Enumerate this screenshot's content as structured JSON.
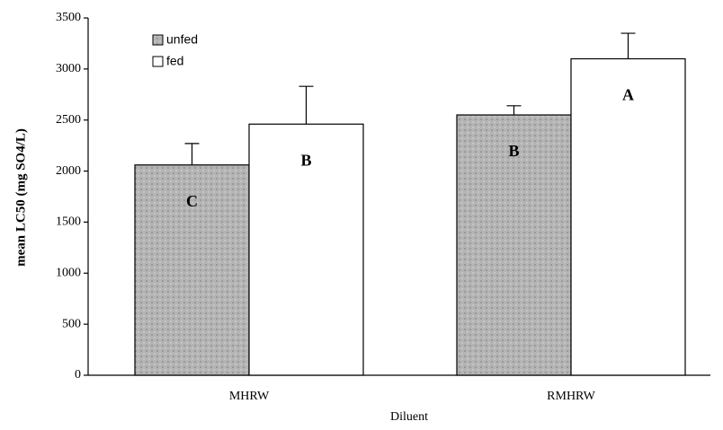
{
  "chart_data": {
    "type": "bar",
    "xlabel": "Diluent",
    "ylabel": "mean LC50 (mg SO4/L)",
    "categories": [
      "MHRW",
      "RMHRW"
    ],
    "series": [
      {
        "name": "unfed",
        "color": "#b4b4b4",
        "values": [
          2060,
          2550
        ],
        "errors": [
          210,
          90
        ],
        "annotations": [
          "C",
          "B"
        ]
      },
      {
        "name": "fed",
        "color": "#ffffff",
        "values": [
          2460,
          3100
        ],
        "errors": [
          370,
          250
        ],
        "annotations": [
          "B",
          "A"
        ]
      }
    ],
    "ylim": [
      0,
      3500
    ],
    "yticks": [
      0,
      500,
      1000,
      1500,
      2000,
      2500,
      3000,
      3500
    ],
    "legend": "upper left",
    "grid": false
  }
}
